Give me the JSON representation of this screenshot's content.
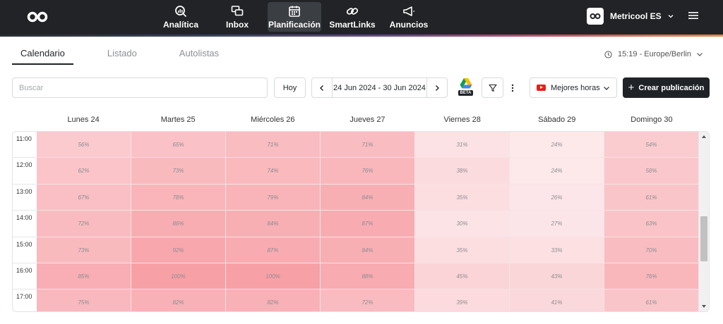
{
  "nav": {
    "items": [
      {
        "label": "Analítica",
        "icon": "analytics-icon",
        "active": false
      },
      {
        "label": "Inbox",
        "icon": "inbox-icon",
        "active": false
      },
      {
        "label": "Planificación",
        "icon": "calendar-icon",
        "active": true
      },
      {
        "label": "SmartLinks",
        "icon": "link-icon",
        "active": false
      },
      {
        "label": "Anuncios",
        "icon": "megaphone-icon",
        "active": false
      }
    ],
    "account": {
      "name": "Metricool ES"
    }
  },
  "tabs": [
    {
      "label": "Calendario",
      "active": true
    },
    {
      "label": "Listado",
      "active": false
    },
    {
      "label": "Autolistas",
      "active": false
    }
  ],
  "timezone": "15:19 - Europe/Berlin",
  "toolbar": {
    "search_placeholder": "Buscar",
    "today_label": "Hoy",
    "date_range": "24 Jun 2024 - 30 Jun 2024",
    "drive_badge": "BETA",
    "best_hours_label": "Mejores horas",
    "create_label": "Crear publicación"
  },
  "calendar": {
    "days": [
      "Lunes 24",
      "Martes 25",
      "Miércoles 26",
      "Jueves 27",
      "Viernes 28",
      "Sábado 29",
      "Domingo 30"
    ],
    "hours": [
      "11:00",
      "12:00",
      "13:00",
      "14:00",
      "15:00",
      "16:00",
      "17:00"
    ],
    "values": [
      [
        56,
        65,
        71,
        71,
        31,
        24,
        54
      ],
      [
        62,
        73,
        74,
        76,
        38,
        24,
        58
      ],
      [
        67,
        78,
        79,
        84,
        35,
        26,
        61
      ],
      [
        72,
        86,
        84,
        87,
        30,
        27,
        63
      ],
      [
        73,
        92,
        87,
        84,
        35,
        33,
        70
      ],
      [
        85,
        100,
        100,
        88,
        45,
        43,
        76
      ],
      [
        75,
        82,
        82,
        72,
        39,
        41,
        61
      ]
    ],
    "heat_color_low": "#fdecee",
    "heat_color_high": "#f7a0a6"
  }
}
